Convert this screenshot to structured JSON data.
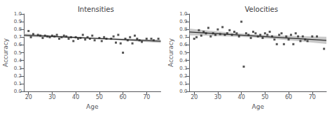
{
  "chart_data": [
    {
      "type": "scatter",
      "title": "Intensities",
      "x_label": "Age",
      "y_label": "Accuracy",
      "xlim": [
        18,
        76
      ],
      "ylim": [
        0.0,
        1.0
      ],
      "xticks": [
        20,
        30,
        40,
        50,
        60,
        70
      ],
      "yticks": [
        {
          "value": 0.0,
          "label": "0.0"
        },
        0.1,
        0.2,
        0.3,
        0.4,
        0.5,
        0.6,
        0.7,
        0.8,
        0.9,
        {
          "value": 1.0,
          "label": "1.0"
        }
      ],
      "grid": false,
      "series": [
        {
          "type": "band",
          "color": "#c0c0c0",
          "x": [
            18,
            20,
            25,
            30,
            35,
            40,
            45,
            50,
            55,
            60,
            65,
            70,
            76
          ],
          "lower": [
            0.7053,
            0.7037,
            0.6995,
            0.6952,
            0.6905,
            0.6853,
            0.6793,
            0.6723,
            0.6643,
            0.6557,
            0.6466,
            0.6373,
            0.6258
          ],
          "upper": [
            0.7467,
            0.7428,
            0.7334,
            0.7241,
            0.7152,
            0.7069,
            0.6993,
            0.6928,
            0.6871,
            0.6822,
            0.6777,
            0.6734,
            0.6686
          ]
        },
        {
          "type": "line",
          "color": "#2b2b2b",
          "x": [
            18,
            76
          ],
          "values": [
            0.726,
            0.6472
          ]
        },
        {
          "type": "scatter",
          "color": "#2b2b2b",
          "marker": "square",
          "x": [
            20,
            21,
            22,
            24,
            25,
            26,
            27,
            28,
            29,
            30,
            31,
            32,
            33,
            34,
            35,
            36,
            37,
            38,
            39,
            40,
            41,
            42,
            43,
            44,
            45,
            46,
            47,
            48,
            50,
            51,
            52,
            53,
            55,
            56,
            57,
            58,
            59,
            60,
            61,
            62,
            63,
            64,
            65,
            66,
            67,
            68,
            70,
            72,
            73,
            75
          ],
          "values": [
            0.78,
            0.7,
            0.74,
            0.73,
            0.72,
            0.69,
            0.72,
            0.71,
            0.7,
            0.72,
            0.71,
            0.73,
            0.68,
            0.7,
            0.72,
            0.71,
            0.68,
            0.7,
            0.65,
            0.7,
            0.68,
            0.69,
            0.73,
            0.67,
            0.7,
            0.68,
            0.72,
            0.66,
            0.69,
            0.65,
            0.7,
            0.68,
            0.68,
            0.71,
            0.63,
            0.73,
            0.62,
            0.5,
            0.68,
            0.66,
            0.7,
            0.62,
            0.72,
            0.68,
            0.66,
            0.64,
            0.68,
            0.68,
            0.66,
            0.68
          ]
        }
      ]
    },
    {
      "type": "scatter",
      "title": "Velocities",
      "x_label": "Age",
      "y_label": "Accuracy",
      "xlim": [
        18,
        76
      ],
      "ylim": [
        0.0,
        1.0
      ],
      "xticks": [
        20,
        30,
        40,
        50,
        60,
        70
      ],
      "yticks": [
        {
          "value": 0.0,
          "label": "0.0"
        },
        0.1,
        0.2,
        0.3,
        0.4,
        0.5,
        0.6,
        0.7,
        0.8,
        0.9,
        {
          "value": 1.0,
          "label": "1.0"
        }
      ],
      "grid": false,
      "series": [
        {
          "type": "band",
          "color": "#c0c0c0",
          "x": [
            18,
            20,
            25,
            30,
            35,
            40,
            45,
            50,
            55,
            60,
            65,
            70,
            76
          ],
          "lower": [
            0.7238,
            0.7225,
            0.7189,
            0.7149,
            0.7101,
            0.704,
            0.6961,
            0.686,
            0.6739,
            0.6605,
            0.6461,
            0.6312,
            0.6129
          ],
          "upper": [
            0.8102,
            0.8041,
            0.7892,
            0.7747,
            0.7609,
            0.7485,
            0.7378,
            0.7294,
            0.7229,
            0.7178,
            0.7136,
            0.7099,
            0.706
          ]
        },
        {
          "type": "line",
          "color": "#2b2b2b",
          "x": [
            18,
            76
          ],
          "values": [
            0.767,
            0.6594
          ]
        },
        {
          "type": "scatter",
          "color": "#2b2b2b",
          "marker": "square",
          "x": [
            20,
            21,
            22,
            23,
            24,
            25,
            26,
            27,
            28,
            29,
            30,
            31,
            32,
            33,
            34,
            35,
            36,
            37,
            38,
            39,
            40,
            41,
            42,
            43,
            44,
            45,
            46,
            47,
            48,
            49,
            50,
            51,
            52,
            53,
            54,
            55,
            56,
            57,
            58,
            59,
            60,
            61,
            62,
            63,
            64,
            65,
            66,
            67,
            68,
            70,
            72,
            75
          ],
          "values": [
            0.68,
            0.7,
            0.79,
            0.72,
            0.77,
            0.75,
            0.82,
            0.71,
            0.75,
            0.73,
            0.8,
            0.74,
            0.83,
            0.73,
            0.75,
            0.79,
            0.73,
            0.77,
            0.75,
            0.71,
            0.9,
            0.32,
            0.75,
            0.73,
            0.69,
            0.77,
            0.75,
            0.71,
            0.73,
            0.69,
            0.75,
            0.73,
            0.77,
            0.71,
            0.67,
            0.61,
            0.73,
            0.75,
            0.61,
            0.71,
            0.67,
            0.73,
            0.61,
            0.75,
            0.71,
            0.65,
            0.71,
            0.67,
            0.65,
            0.71,
            0.71,
            0.55
          ]
        }
      ]
    }
  ]
}
